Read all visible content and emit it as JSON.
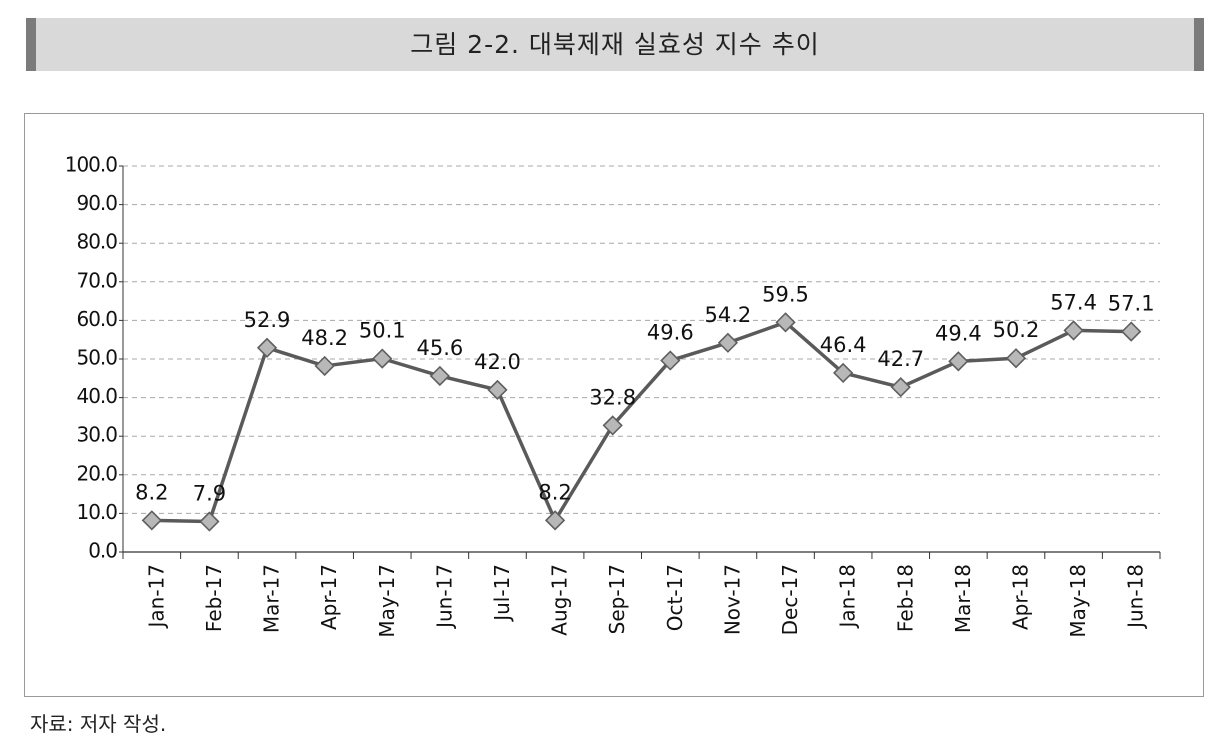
{
  "header": {
    "title": "그림 2-2. 대북제재 실효성 지수 추이"
  },
  "footer": {
    "source": "자료: 저자 작성."
  },
  "colors": {
    "line": "#5a5a5a",
    "marker_fill": "#b8b8b8",
    "marker_stroke": "#5f5f5f",
    "header_bg": "#d9d9d9",
    "header_edge": "#7b7b7b"
  },
  "chart_data": {
    "type": "line",
    "title": "",
    "xlabel": "",
    "ylabel": "",
    "ylim": [
      0,
      100
    ],
    "yticks": [
      "0.0",
      "10.0",
      "20.0",
      "30.0",
      "40.0",
      "50.0",
      "60.0",
      "70.0",
      "80.0",
      "90.0",
      "100.0"
    ],
    "categories": [
      "Jan-17",
      "Feb-17",
      "Mar-17",
      "Apr-17",
      "May-17",
      "Jun-17",
      "Jul-17",
      "Aug-17",
      "Sep-17",
      "Oct-17",
      "Nov-17",
      "Dec-17",
      "Jan-18",
      "Feb-18",
      "Mar-18",
      "Apr-18",
      "May-18",
      "Jun-18"
    ],
    "series": [
      {
        "values": [
          8.2,
          7.9,
          52.9,
          48.2,
          50.1,
          45.6,
          42.0,
          8.2,
          32.8,
          49.6,
          54.2,
          59.5,
          46.4,
          42.7,
          49.4,
          50.2,
          57.4,
          57.1
        ]
      }
    ],
    "data_labels": [
      "8.2",
      "7.9",
      "52.9",
      "48.2",
      "50.1",
      "45.6",
      "42.0",
      "8.2",
      "32.8",
      "49.6",
      "54.2",
      "59.5",
      "46.4",
      "42.7",
      "49.4",
      "50.2",
      "57.4",
      "57.1"
    ],
    "grid": true,
    "marker": "diamond"
  }
}
